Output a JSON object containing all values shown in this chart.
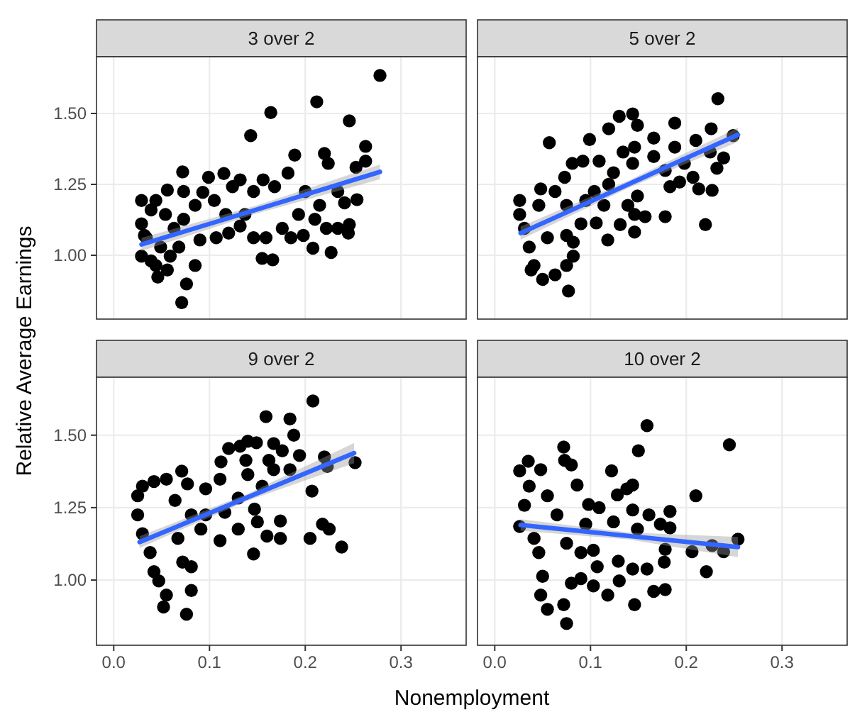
{
  "chart_data": [
    {
      "type": "scatter",
      "title": "3 over 2",
      "ylabel": "Relative Average Earnings",
      "xlim": [
        -0.018,
        0.368
      ],
      "ylim": [
        0.775,
        1.7
      ],
      "xticks": [
        0,
        0.1,
        0.2,
        0.3
      ],
      "yticks": [
        {
          "value": 1,
          "label": "1.00"
        },
        {
          "value": 1.25,
          "label": "1.25"
        },
        {
          "value": 1.5,
          "label": "1.50"
        }
      ],
      "grid": true,
      "tick_labels": "y",
      "series": [
        {
          "marker": "circle",
          "color": "#000000",
          "x": [
            0.278,
            0.212,
            0.164,
            0.246,
            0.143,
            0.263,
            0.189,
            0.22,
            0.224,
            0.263,
            0.253,
            0.072,
            0.099,
            0.115,
            0.132,
            0.156,
            0.182,
            0.056,
            0.073,
            0.093,
            0.029,
            0.044,
            0.085,
            0.105,
            0.124,
            0.146,
            0.168,
            0.2,
            0.215,
            0.234,
            0.254,
            0.241,
            0.029,
            0.034,
            0.029,
            0.044,
            0.046,
            0.059,
            0.068,
            0.076,
            0.085,
            0.071,
            0.054,
            0.073,
            0.09,
            0.107,
            0.12,
            0.132,
            0.146,
            0.159,
            0.155,
            0.166,
            0.176,
            0.185,
            0.198,
            0.208,
            0.227,
            0.222,
            0.234,
            0.245,
            0.246,
            0.21,
            0.193,
            0.117,
            0.137,
            0.039,
            0.032,
            0.049,
            0.063,
            0.039,
            0.056
          ],
          "values": [
            1.634,
            1.541,
            1.503,
            1.474,
            1.422,
            1.384,
            1.353,
            1.359,
            1.324,
            1.332,
            1.31,
            1.294,
            1.275,
            1.288,
            1.266,
            1.266,
            1.29,
            1.23,
            1.225,
            1.222,
            1.193,
            1.193,
            1.176,
            1.193,
            1.242,
            1.225,
            1.242,
            1.225,
            1.176,
            1.225,
            1.196,
            1.185,
            1.111,
            1.062,
            0.997,
            0.964,
            0.923,
            0.997,
            1.029,
            0.899,
            0.964,
            0.833,
            1.144,
            1.127,
            1.054,
            1.062,
            1.078,
            1.103,
            1.062,
            1.062,
            0.989,
            0.984,
            1.095,
            1.062,
            1.07,
            1.025,
            1.01,
            1.095,
            1.095,
            1.078,
            1.108,
            1.127,
            1.144,
            1.144,
            1.144,
            1.16,
            1.07,
            1.029,
            1.095,
            0.98,
            0.948
          ]
        },
        {
          "type": "line",
          "color": "#3366ff",
          "x": [
            0.029,
            0.15,
            0.278
          ],
          "values": [
            1.038,
            1.162,
            1.294
          ],
          "lower": [
            1.015,
            1.148,
            1.268
          ],
          "upper": [
            1.061,
            1.176,
            1.32
          ]
        }
      ]
    },
    {
      "type": "scatter",
      "title": "5 over 2",
      "xlim": [
        -0.018,
        0.368
      ],
      "ylim": [
        0.775,
        1.7
      ],
      "xticks": [
        0,
        0.1,
        0.2,
        0.3
      ],
      "yticks": [
        1,
        1.25,
        1.5
      ],
      "grid": true,
      "tick_labels": false,
      "series": [
        {
          "marker": "circle",
          "color": "#000000",
          "x": [
            0.233,
            0.057,
            0.099,
            0.13,
            0.144,
            0.149,
            0.119,
            0.188,
            0.226,
            0.21,
            0.166,
            0.188,
            0.146,
            0.134,
            0.109,
            0.081,
            0.092,
            0.124,
            0.144,
            0.166,
            0.178,
            0.198,
            0.207,
            0.232,
            0.239,
            0.225,
            0.249,
            0.073,
            0.104,
            0.119,
            0.183,
            0.193,
            0.213,
            0.227,
            0.149,
            0.026,
            0.048,
            0.063,
            0.095,
            0.114,
            0.139,
            0.146,
            0.157,
            0.178,
            0.22,
            0.131,
            0.146,
            0.106,
            0.118,
            0.026,
            0.031,
            0.036,
            0.041,
            0.05,
            0.063,
            0.075,
            0.082,
            0.055,
            0.075,
            0.09,
            0.046,
            0.075,
            0.038,
            0.077,
            0.082
          ],
          "values": [
            1.552,
            1.397,
            1.408,
            1.49,
            1.498,
            1.458,
            1.446,
            1.466,
            1.446,
            1.405,
            1.413,
            1.381,
            1.381,
            1.364,
            1.332,
            1.324,
            1.332,
            1.291,
            1.324,
            1.348,
            1.299,
            1.324,
            1.275,
            1.307,
            1.343,
            1.364,
            1.422,
            1.275,
            1.225,
            1.25,
            1.242,
            1.258,
            1.234,
            1.229,
            1.209,
            1.193,
            1.234,
            1.225,
            1.193,
            1.176,
            1.176,
            1.144,
            1.136,
            1.136,
            1.108,
            1.108,
            1.082,
            1.114,
            1.054,
            1.144,
            1.095,
            1.029,
            0.964,
            0.915,
            0.931,
            0.964,
            0.997,
            1.062,
            1.07,
            1.111,
            1.176,
            1.176,
            0.948,
            0.874,
            1.046
          ]
        },
        {
          "type": "line",
          "color": "#3366ff",
          "x": [
            0.027,
            0.14,
            0.254
          ],
          "values": [
            1.078,
            1.251,
            1.425
          ],
          "lower": [
            1.055,
            1.238,
            1.4
          ],
          "upper": [
            1.101,
            1.264,
            1.45
          ]
        }
      ]
    },
    {
      "type": "scatter",
      "title": "9 over 2",
      "xlabel": "Nonemployment",
      "xlim": [
        -0.018,
        0.368
      ],
      "ylim": [
        0.775,
        1.7
      ],
      "xticks": [
        {
          "value": 0,
          "label": "0.0"
        },
        {
          "value": 0.1,
          "label": "0.1"
        },
        {
          "value": 0.2,
          "label": "0.2"
        },
        {
          "value": 0.3,
          "label": "0.3"
        }
      ],
      "yticks": [
        {
          "value": 1,
          "label": "1.00"
        },
        {
          "value": 1.25,
          "label": "1.25"
        },
        {
          "value": 1.5,
          "label": "1.50"
        }
      ],
      "grid": true,
      "series": [
        {
          "marker": "circle",
          "color": "#000000",
          "x": [
            0.208,
            0.159,
            0.184,
            0.188,
            0.14,
            0.167,
            0.12,
            0.132,
            0.149,
            0.176,
            0.194,
            0.22,
            0.252,
            0.223,
            0.112,
            0.138,
            0.162,
            0.184,
            0.167,
            0.071,
            0.14,
            0.111,
            0.096,
            0.077,
            0.207,
            0.155,
            0.13,
            0.147,
            0.116,
            0.13,
            0.15,
            0.174,
            0.218,
            0.225,
            0.16,
            0.174,
            0.205,
            0.238,
            0.146,
            0.111,
            0.091,
            0.025,
            0.03,
            0.042,
            0.055,
            0.025,
            0.03,
            0.038,
            0.042,
            0.047,
            0.055,
            0.052,
            0.076,
            0.081,
            0.072,
            0.067,
            0.081,
            0.081,
            0.096,
            0.064
          ],
          "values": [
            1.618,
            1.564,
            1.556,
            1.5,
            1.479,
            1.471,
            1.454,
            1.462,
            1.474,
            1.446,
            1.43,
            1.425,
            1.405,
            1.392,
            1.408,
            1.413,
            1.413,
            1.381,
            1.381,
            1.376,
            1.364,
            1.348,
            1.315,
            1.332,
            1.307,
            1.324,
            1.283,
            1.245,
            1.234,
            1.176,
            1.201,
            1.204,
            1.193,
            1.176,
            1.152,
            1.144,
            1.144,
            1.114,
            1.09,
            1.136,
            1.176,
            1.291,
            1.324,
            1.34,
            1.348,
            1.225,
            1.16,
            1.095,
            1.029,
            0.997,
            0.948,
            0.907,
            0.882,
            0.964,
            1.062,
            1.144,
            1.225,
            1.046,
            1.225,
            1.275
          ]
        },
        {
          "type": "line",
          "color": "#3366ff",
          "x": [
            0.027,
            0.14,
            0.251
          ],
          "values": [
            1.131,
            1.286,
            1.438
          ],
          "lower": [
            1.111,
            1.274,
            1.403
          ],
          "upper": [
            1.151,
            1.298,
            1.473
          ]
        }
      ]
    },
    {
      "type": "scatter",
      "title": "10 over 2",
      "xlim": [
        -0.018,
        0.368
      ],
      "ylim": [
        0.775,
        1.7
      ],
      "xticks": [
        {
          "value": 0,
          "label": "0.0"
        },
        {
          "value": 0.1,
          "label": "0.1"
        },
        {
          "value": 0.2,
          "label": "0.2"
        },
        {
          "value": 0.3,
          "label": "0.3"
        }
      ],
      "yticks": [
        1,
        1.25,
        1.5
      ],
      "grid": true,
      "tick_labels": "x",
      "series": [
        {
          "marker": "circle",
          "color": "#000000",
          "x": [
            0.159,
            0.245,
            0.072,
            0.15,
            0.035,
            0.026,
            0.073,
            0.08,
            0.048,
            0.122,
            0.086,
            0.144,
            0.138,
            0.21,
            0.128,
            0.098,
            0.109,
            0.144,
            0.161,
            0.183,
            0.095,
            0.124,
            0.149,
            0.173,
            0.183,
            0.026,
            0.031,
            0.036,
            0.041,
            0.046,
            0.05,
            0.048,
            0.055,
            0.075,
            0.072,
            0.08,
            0.09,
            0.103,
            0.107,
            0.118,
            0.13,
            0.146,
            0.129,
            0.144,
            0.159,
            0.166,
            0.178,
            0.177,
            0.178,
            0.206,
            0.221,
            0.227,
            0.239,
            0.254,
            0.103,
            0.075,
            0.065,
            0.055,
            0.09
          ],
          "values": [
            1.533,
            1.467,
            1.459,
            1.446,
            1.41,
            1.377,
            1.413,
            1.397,
            1.381,
            1.377,
            1.328,
            1.328,
            1.315,
            1.291,
            1.294,
            1.261,
            1.25,
            1.242,
            1.225,
            1.237,
            1.193,
            1.201,
            1.176,
            1.193,
            1.18,
            1.185,
            1.258,
            1.324,
            1.144,
            1.095,
            1.013,
            0.948,
            0.899,
            0.85,
            0.915,
            0.989,
            1.005,
            0.98,
            1.046,
            0.948,
            0.997,
            0.915,
            1.065,
            1.038,
            1.038,
            0.961,
            0.967,
            1.062,
            1.106,
            1.098,
            1.029,
            1.119,
            1.098,
            1.141,
            1.103,
            1.127,
            1.225,
            1.291,
            1.095
          ]
        },
        {
          "type": "line",
          "color": "#3366ff",
          "x": [
            0.027,
            0.14,
            0.254
          ],
          "values": [
            1.19,
            1.152,
            1.114
          ],
          "lower": [
            1.17,
            1.14,
            1.079
          ],
          "upper": [
            1.21,
            1.164,
            1.149
          ]
        }
      ]
    }
  ]
}
